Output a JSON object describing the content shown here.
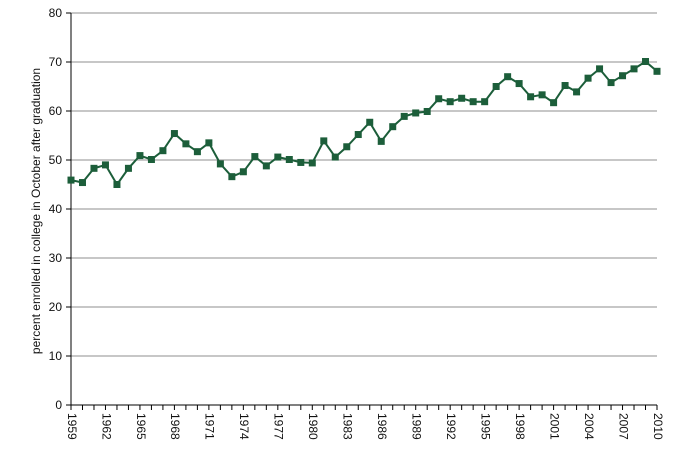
{
  "chart_data": {
    "type": "line",
    "title": "",
    "xlabel": "",
    "ylabel": "percent enrolled in college in October after graduation",
    "ylim": [
      0,
      80
    ],
    "y_ticks": [
      0,
      10,
      20,
      30,
      40,
      50,
      60,
      70,
      80
    ],
    "x_ticks": [
      "1959",
      "1962",
      "1965",
      "1968",
      "1971",
      "1974",
      "1977",
      "1980",
      "1983",
      "1986",
      "1989",
      "1992",
      "1995",
      "1998",
      "2001",
      "2004",
      "2007",
      "2010"
    ],
    "grid": "horizontal",
    "legend": "none",
    "colors": {
      "series": "#1c5e3a",
      "grid": "#8f8f8f",
      "axis": "#000000"
    },
    "x": [
      1959,
      1960,
      1961,
      1962,
      1963,
      1964,
      1965,
      1966,
      1967,
      1968,
      1969,
      1970,
      1971,
      1972,
      1973,
      1974,
      1975,
      1976,
      1977,
      1978,
      1979,
      1980,
      1981,
      1982,
      1983,
      1984,
      1985,
      1986,
      1987,
      1988,
      1989,
      1990,
      1991,
      1992,
      1993,
      1994,
      1995,
      1996,
      1997,
      1998,
      1999,
      2000,
      2001,
      2002,
      2003,
      2004,
      2005,
      2006,
      2007,
      2008,
      2009,
      2010
    ],
    "series": [
      {
        "values": [
          45.9,
          45.4,
          48.3,
          49.0,
          45.0,
          48.3,
          50.9,
          50.1,
          51.9,
          55.4,
          53.3,
          51.7,
          53.5,
          49.2,
          46.6,
          47.6,
          50.7,
          48.8,
          50.6,
          50.1,
          49.5,
          49.4,
          53.9,
          50.6,
          52.7,
          55.2,
          57.7,
          53.8,
          56.8,
          58.9,
          59.6,
          59.9,
          62.5,
          61.9,
          62.6,
          61.9,
          61.9,
          65.0,
          67.0,
          65.6,
          62.9,
          63.3,
          61.7,
          65.2,
          63.9,
          66.7,
          68.6,
          65.8,
          67.2,
          68.6,
          70.1,
          68.1
        ]
      }
    ]
  }
}
